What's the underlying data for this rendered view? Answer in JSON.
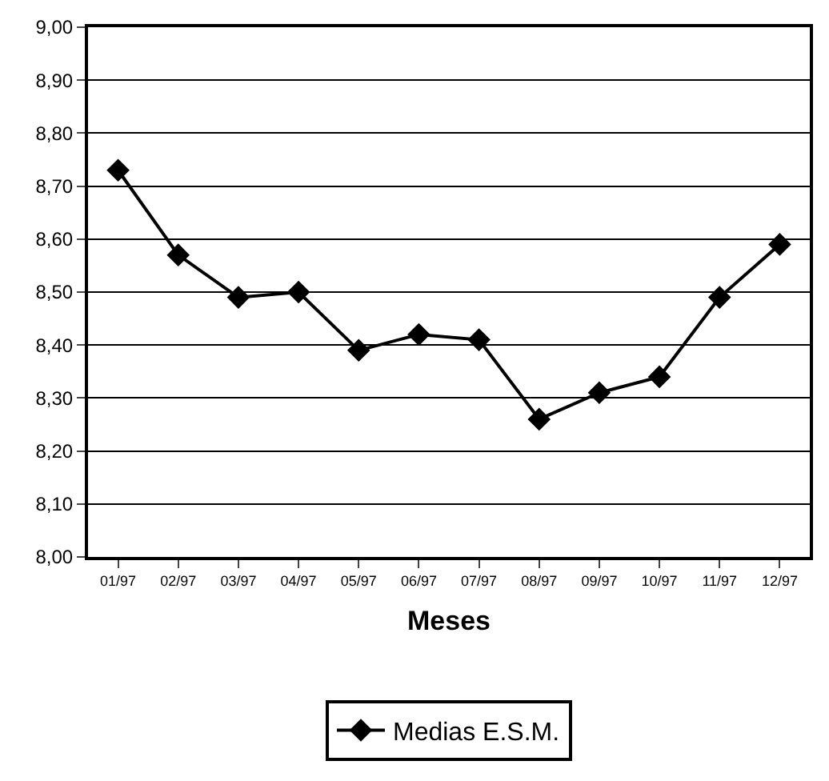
{
  "chart_data": {
    "type": "line",
    "xlabel": "Meses",
    "categories": [
      "01/97",
      "02/97",
      "03/97",
      "04/97",
      "05/97",
      "06/97",
      "07/97",
      "08/97",
      "09/97",
      "10/97",
      "11/97",
      "12/97"
    ],
    "series": [
      {
        "name": "Medias E.S.M.",
        "color": "#000000",
        "values": [
          8.73,
          8.57,
          8.49,
          8.5,
          8.39,
          8.42,
          8.41,
          8.26,
          8.31,
          8.34,
          8.49,
          8.59
        ]
      }
    ],
    "ylim": [
      8.0,
      9.0
    ],
    "yticks": [
      {
        "value": 8.0,
        "label": "8,00"
      },
      {
        "value": 8.1,
        "label": "8,10"
      },
      {
        "value": 8.2,
        "label": "8,20"
      },
      {
        "value": 8.3,
        "label": "8,30"
      },
      {
        "value": 8.4,
        "label": "8,40"
      },
      {
        "value": 8.5,
        "label": "8,50"
      },
      {
        "value": 8.6,
        "label": "8,60"
      },
      {
        "value": 8.7,
        "label": "8,70"
      },
      {
        "value": 8.8,
        "label": "8,80"
      },
      {
        "value": 8.9,
        "label": "8,90"
      },
      {
        "value": 9.0,
        "label": "9,00"
      }
    ],
    "grid": "y",
    "legend": "bottom",
    "marker": "diamond",
    "line_style": "solid"
  }
}
